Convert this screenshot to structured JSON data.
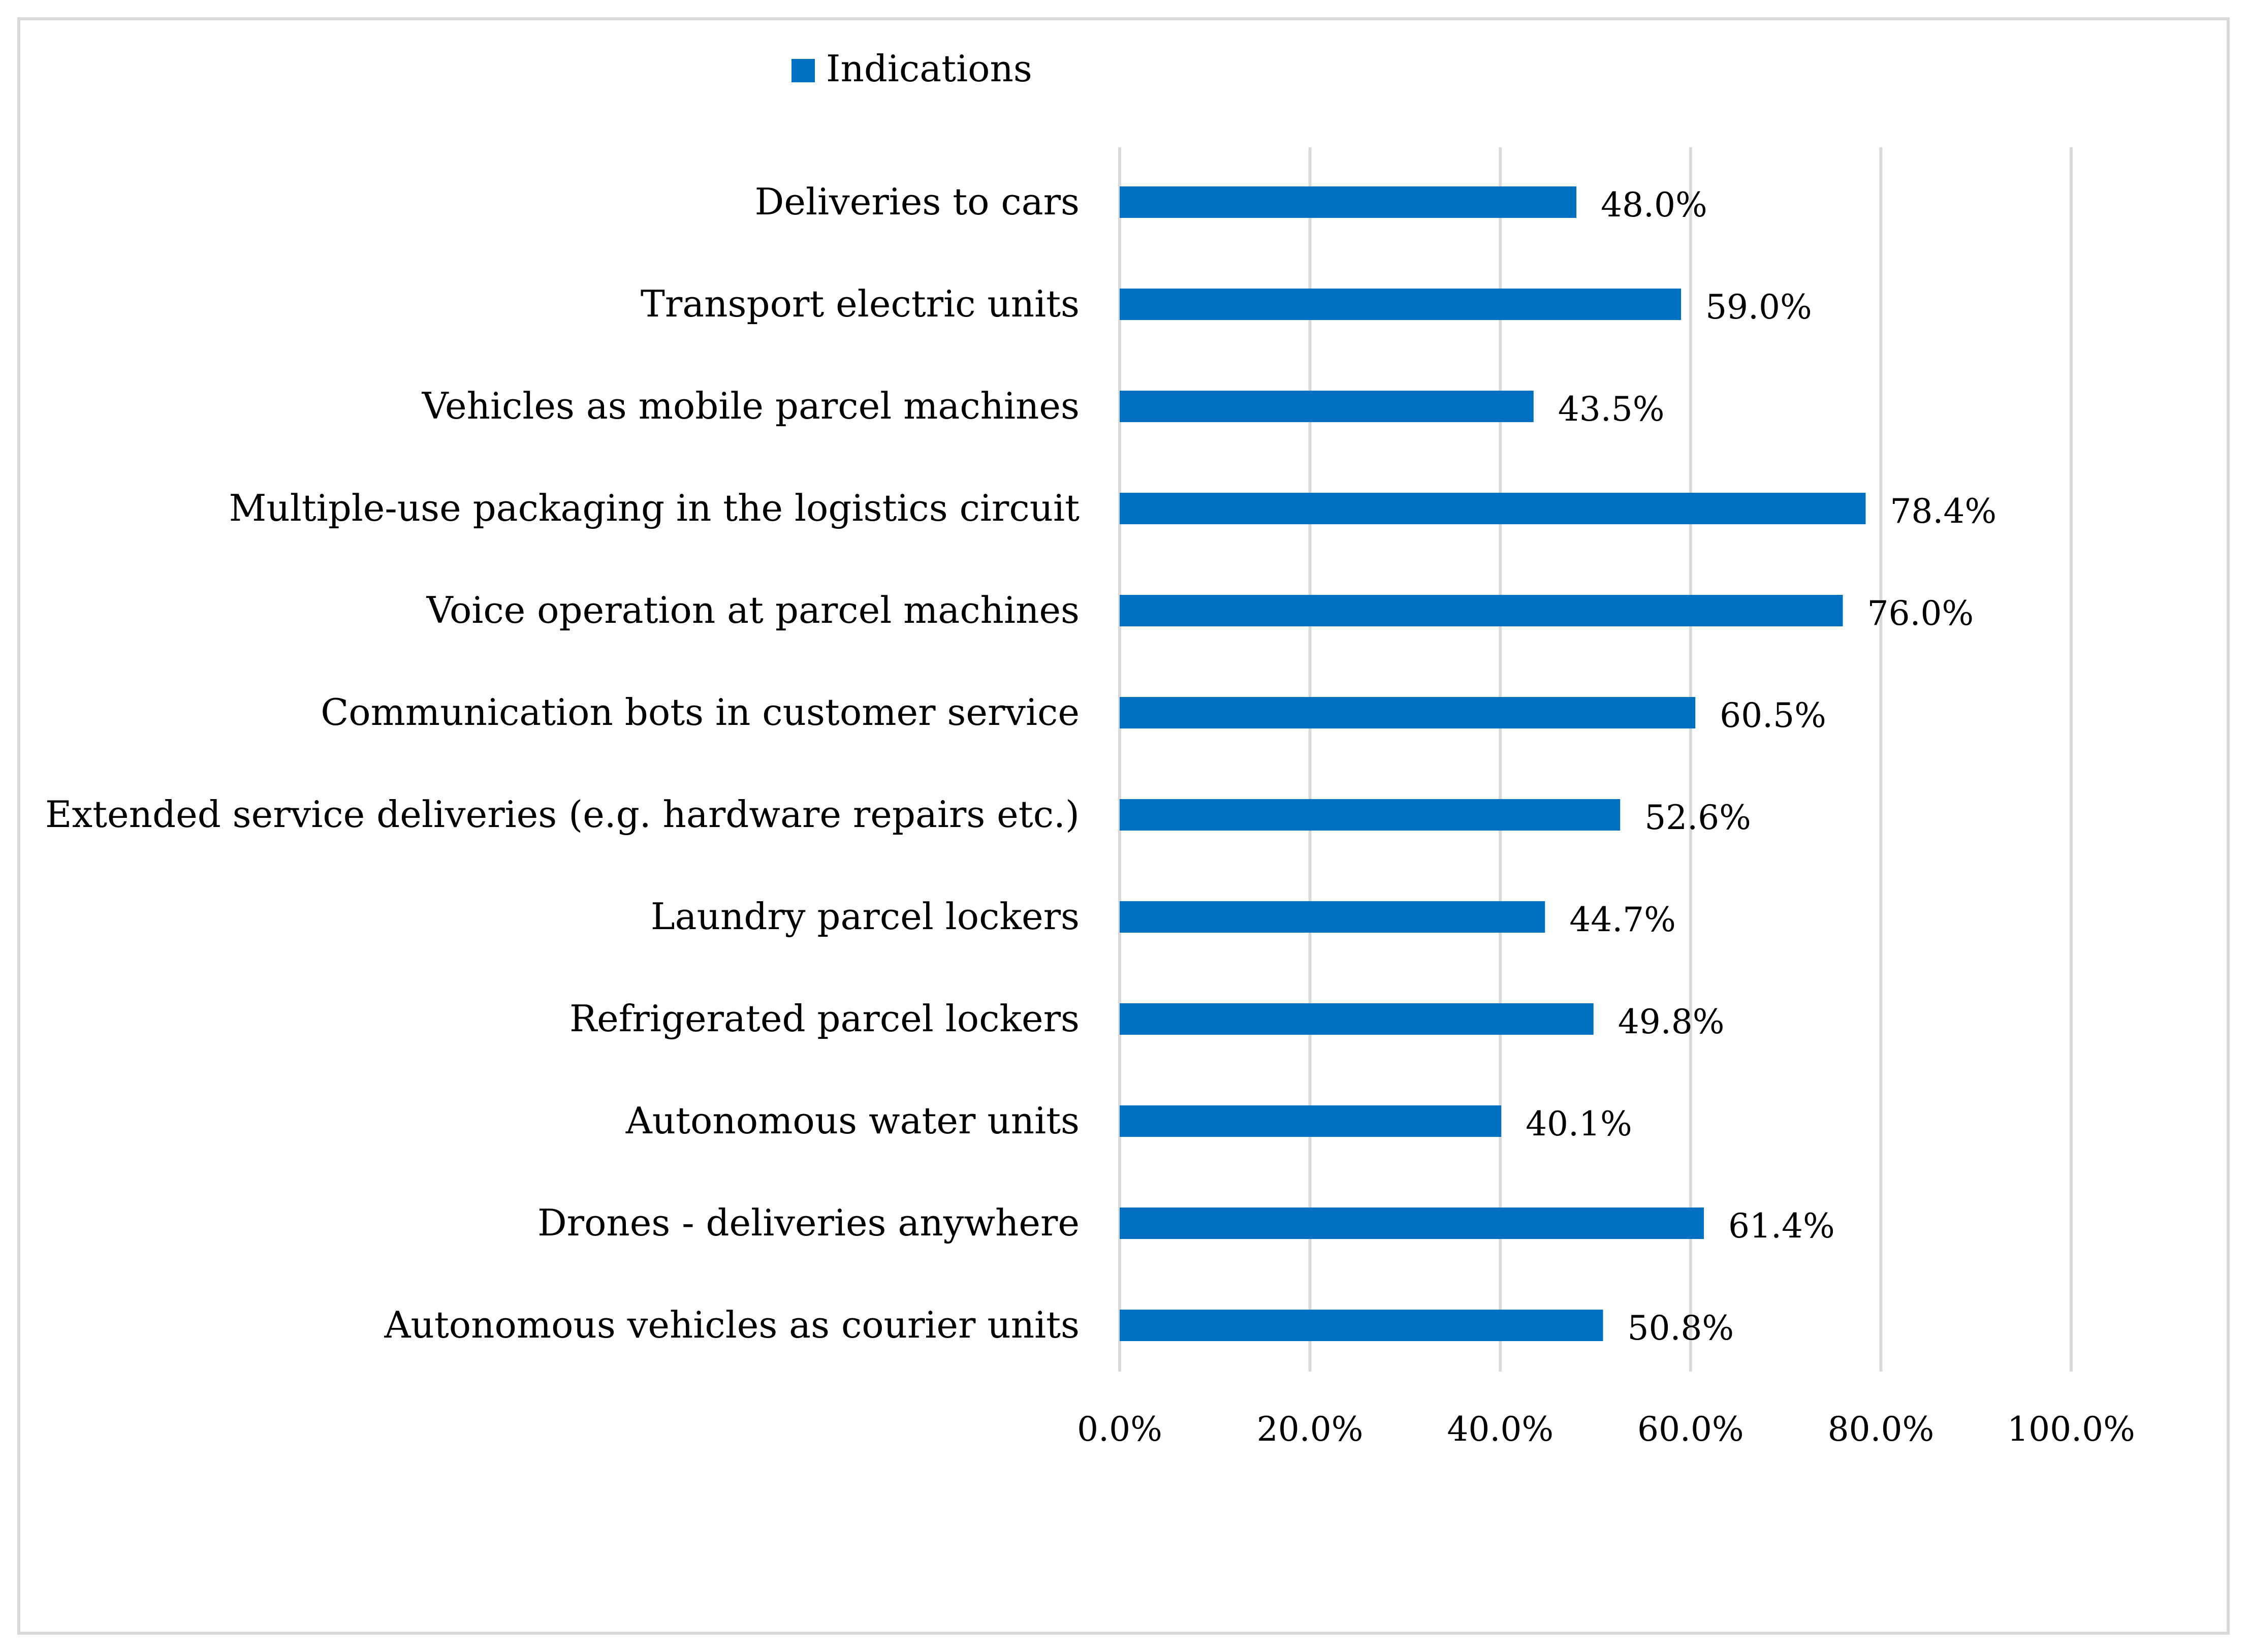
{
  "chart_data": {
    "type": "bar",
    "orientation": "horizontal",
    "title": "",
    "xlabel": "",
    "ylabel": "",
    "xlim": [
      0,
      100
    ],
    "grid": true,
    "legend_position": "top",
    "tick_step": 20,
    "tick_labels": [
      "0.0%",
      "20.0%",
      "40.0%",
      "60.0%",
      "80.0%",
      "100.0%"
    ],
    "categories": [
      "Deliveries to cars",
      "Transport electric units",
      "Vehicles as mobile parcel machines",
      "Multiple-use packaging in the logistics circuit",
      "Voice operation at parcel machines",
      "Communication bots in customer service",
      "Extended service deliveries (e.g. hardware repairs etc.)",
      "Laundry parcel lockers",
      "Refrigerated parcel lockers",
      "Autonomous water units",
      "Drones - deliveries anywhere",
      "Autonomous vehicles as courier units"
    ],
    "series": [
      {
        "name": "Indications",
        "color": "#0070c0",
        "values": [
          48.0,
          59.0,
          43.5,
          78.4,
          76.0,
          60.5,
          52.6,
          44.7,
          49.8,
          40.1,
          61.4,
          50.8
        ],
        "value_labels": [
          "48.0%",
          "59.0%",
          "43.5%",
          "78.4%",
          "76.0%",
          "60.5%",
          "52.6%",
          "44.7%",
          "49.8%",
          "40.1%",
          "61.4%",
          "50.8%"
        ]
      }
    ]
  }
}
